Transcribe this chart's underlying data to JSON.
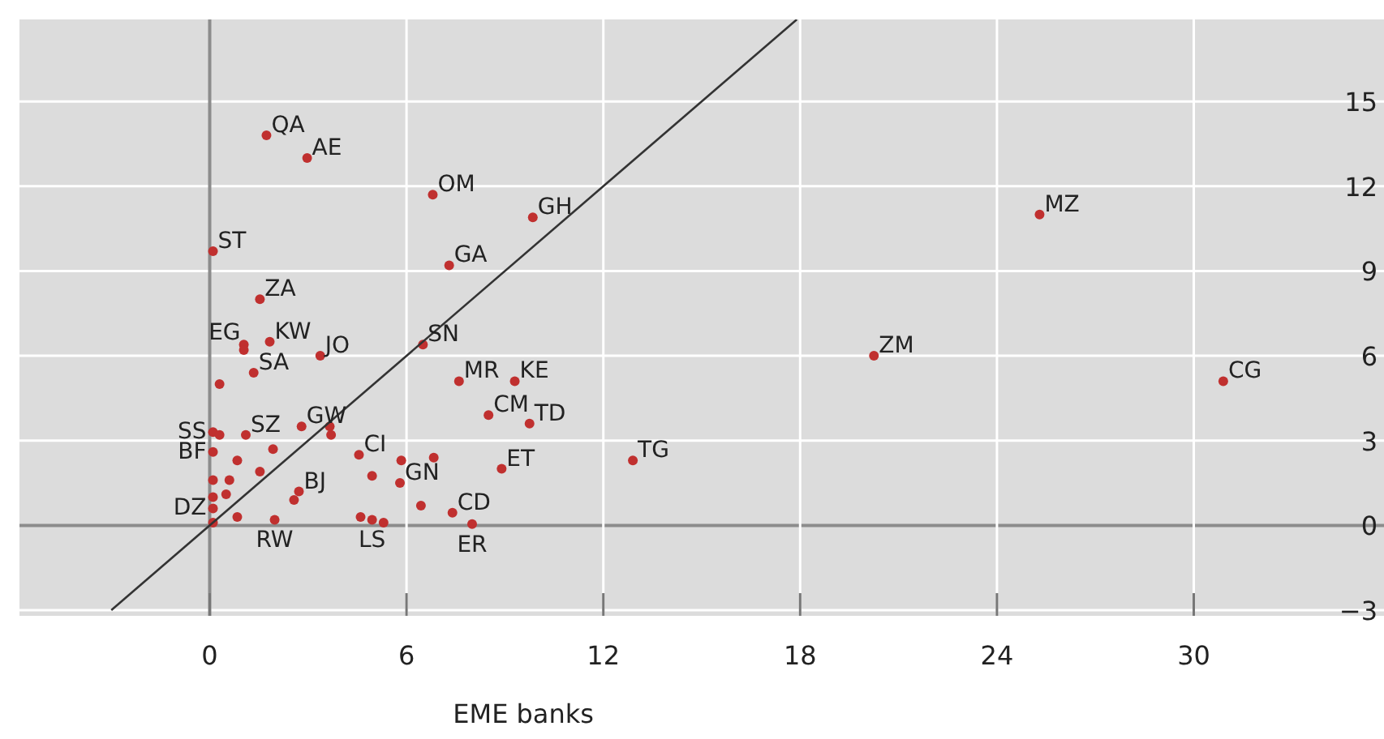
{
  "chart_data": {
    "type": "scatter",
    "xlabel": "EME banks",
    "xlim": [
      -5.8,
      35.8
    ],
    "ylim": [
      -3.2,
      17.9
    ],
    "xticks": [
      0,
      6,
      12,
      18,
      24,
      30
    ],
    "yticks": [
      -3,
      0,
      3,
      6,
      9,
      12,
      15
    ],
    "grid": true,
    "marker": "circle",
    "series": [
      {
        "color": "#c0302f",
        "x": [
          1.73,
          2.97,
          6.8,
          9.85,
          0.1,
          7.3,
          25.3,
          20.25,
          30.9,
          1.53,
          1.04,
          1.04,
          1.83,
          3.37,
          1.34,
          0.3,
          6.5,
          7.6,
          9.3,
          8.5,
          9.75,
          12.9,
          0.1,
          0.3,
          1.1,
          2.8,
          0.1,
          3.66,
          3.7,
          1.93,
          0.84,
          1.53,
          4.55,
          5.84,
          6.83,
          5.8,
          4.95,
          8.9,
          2.72,
          2.57,
          0.1,
          0.6,
          0.1,
          0.5,
          0.1,
          0.84,
          0.1,
          1.98,
          4.6,
          4.95,
          5.3,
          6.44,
          7.4,
          8.0
        ],
        "values": [
          13.8,
          13.0,
          11.7,
          10.9,
          9.7,
          9.2,
          11.0,
          6.0,
          5.1,
          8.0,
          6.4,
          6.2,
          6.5,
          6.0,
          5.4,
          5.0,
          6.4,
          5.1,
          5.1,
          3.9,
          3.6,
          2.3,
          3.3,
          3.2,
          3.2,
          3.5,
          2.6,
          3.5,
          3.2,
          2.7,
          2.3,
          1.9,
          2.5,
          2.3,
          2.4,
          1.5,
          1.75,
          2.0,
          1.2,
          0.9,
          1.6,
          1.6,
          1.0,
          1.1,
          0.6,
          0.3,
          0.1,
          0.2,
          0.3,
          0.2,
          0.1,
          0.7,
          0.45,
          0.05
        ]
      },
      {
        "type": "line",
        "color": "#333333",
        "x": [
          -3,
          17.9
        ],
        "values": [
          -3,
          17.9
        ],
        "marker": "none"
      }
    ],
    "annotations": [
      {
        "text": "QA",
        "x": 1.73,
        "y": 13.8
      },
      {
        "text": "AE",
        "x": 2.97,
        "y": 13.0
      },
      {
        "text": "OM",
        "x": 6.8,
        "y": 11.7
      },
      {
        "text": "GH",
        "x": 9.85,
        "y": 10.9
      },
      {
        "text": "ST",
        "x": 0.1,
        "y": 9.7
      },
      {
        "text": "GA",
        "x": 7.3,
        "y": 9.2
      },
      {
        "text": "MZ",
        "x": 25.3,
        "y": 11.0
      },
      {
        "text": "ZM",
        "x": 20.25,
        "y": 6.0
      },
      {
        "text": "CG",
        "x": 30.9,
        "y": 5.1
      },
      {
        "text": "ZA",
        "x": 1.53,
        "y": 8.0
      },
      {
        "text": "EG",
        "x": 1.04,
        "y": 6.4
      },
      {
        "text": "KW",
        "x": 1.83,
        "y": 6.5
      },
      {
        "text": "JO",
        "x": 3.37,
        "y": 6.0
      },
      {
        "text": "SA",
        "x": 1.34,
        "y": 5.4
      },
      {
        "text": "SN",
        "x": 6.5,
        "y": 6.4
      },
      {
        "text": "MR",
        "x": 7.6,
        "y": 5.1
      },
      {
        "text": "KE",
        "x": 9.3,
        "y": 5.1
      },
      {
        "text": "CM",
        "x": 8.5,
        "y": 3.9
      },
      {
        "text": "TD",
        "x": 9.75,
        "y": 3.6
      },
      {
        "text": "TG",
        "x": 12.9,
        "y": 2.3
      },
      {
        "text": "SS",
        "x": 0.1,
        "y": 3.3
      },
      {
        "text": "SZ",
        "x": 1.1,
        "y": 3.2
      },
      {
        "text": "GW",
        "x": 2.8,
        "y": 3.5
      },
      {
        "text": "BF",
        "x": 0.1,
        "y": 2.6
      },
      {
        "text": "CI",
        "x": 4.55,
        "y": 2.5
      },
      {
        "text": "GN",
        "x": 5.8,
        "y": 1.5
      },
      {
        "text": "ET",
        "x": 8.9,
        "y": 2.0
      },
      {
        "text": "BJ",
        "x": 2.72,
        "y": 1.2
      },
      {
        "text": "DZ",
        "x": 0.1,
        "y": 0.6
      },
      {
        "text": "RW",
        "x": 1.98,
        "y": 0.2
      },
      {
        "text": "LS",
        "x": 4.95,
        "y": 0.2
      },
      {
        "text": "CD",
        "x": 7.4,
        "y": 0.45
      },
      {
        "text": "ER",
        "x": 8.0,
        "y": 0.05
      }
    ]
  }
}
